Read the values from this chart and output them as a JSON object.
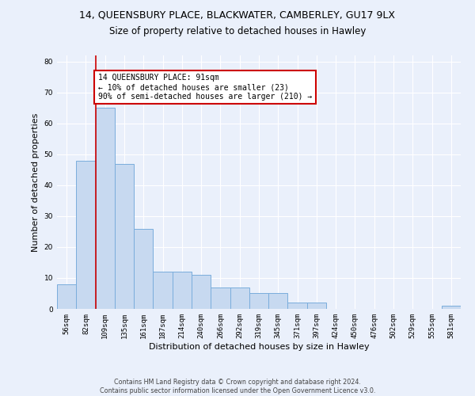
{
  "title": "14, QUEENSBURY PLACE, BLACKWATER, CAMBERLEY, GU17 9LX",
  "subtitle": "Size of property relative to detached houses in Hawley",
  "xlabel": "Distribution of detached houses by size in Hawley",
  "ylabel": "Number of detached properties",
  "categories": [
    "56sqm",
    "82sqm",
    "109sqm",
    "135sqm",
    "161sqm",
    "187sqm",
    "214sqm",
    "240sqm",
    "266sqm",
    "292sqm",
    "319sqm",
    "345sqm",
    "371sqm",
    "397sqm",
    "424sqm",
    "450sqm",
    "476sqm",
    "502sqm",
    "529sqm",
    "555sqm",
    "581sqm"
  ],
  "values": [
    8,
    48,
    65,
    47,
    26,
    12,
    12,
    11,
    7,
    7,
    5,
    5,
    2,
    2,
    0,
    0,
    0,
    0,
    0,
    0,
    1
  ],
  "bar_color": "#c7d9f0",
  "bar_edge_color": "#7aaddc",
  "vline_x": 1.5,
  "vline_color": "#cc0000",
  "annotation_text": "14 QUEENSBURY PLACE: 91sqm\n← 10% of detached houses are smaller (23)\n90% of semi-detached houses are larger (210) →",
  "annotation_box_color": "#ffffff",
  "annotation_box_edge_color": "#cc0000",
  "ylim": [
    0,
    82
  ],
  "yticks": [
    0,
    10,
    20,
    30,
    40,
    50,
    60,
    70,
    80
  ],
  "footer_line1": "Contains HM Land Registry data © Crown copyright and database right 2024.",
  "footer_line2": "Contains public sector information licensed under the Open Government Licence v3.0.",
  "background_color": "#eaf0fb",
  "plot_background_color": "#eaf0fb",
  "grid_color": "#ffffff",
  "title_fontsize": 9,
  "subtitle_fontsize": 8.5,
  "tick_fontsize": 6.5,
  "ylabel_fontsize": 8,
  "xlabel_fontsize": 8,
  "annotation_fontsize": 7,
  "footer_fontsize": 5.8
}
